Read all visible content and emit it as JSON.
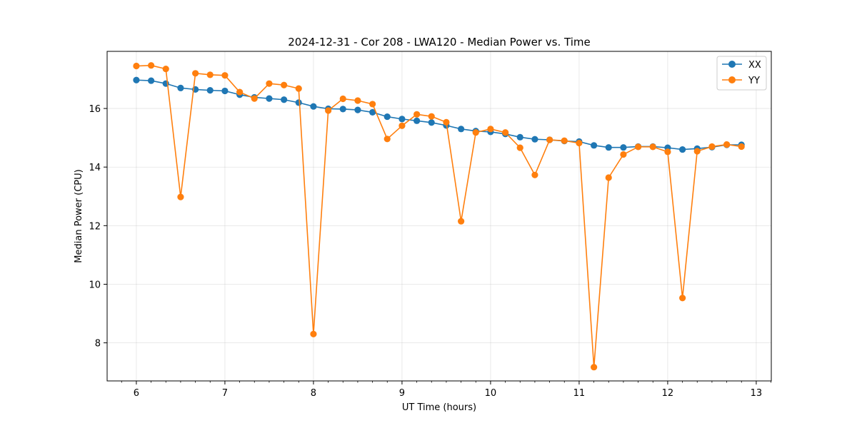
{
  "chart_data": {
    "type": "line",
    "title": "2024-12-31 - Cor 208 - LWA120 - Median Power vs. Time",
    "xlabel": "UT Time (hours)",
    "ylabel": "Median Power (CPU)",
    "xlim": [
      5.67,
      13.17
    ],
    "ylim": [
      6.7,
      17.95
    ],
    "xticks": [
      6,
      7,
      8,
      9,
      10,
      11,
      12,
      13
    ],
    "yticks": [
      8,
      10,
      12,
      14,
      16
    ],
    "grid": true,
    "legend_position": "top-right",
    "x": [
      6.0,
      6.167,
      6.333,
      6.5,
      6.667,
      6.833,
      7.0,
      7.167,
      7.333,
      7.5,
      7.667,
      7.833,
      8.0,
      8.167,
      8.333,
      8.5,
      8.667,
      8.833,
      9.0,
      9.167,
      9.333,
      9.5,
      9.667,
      9.833,
      10.0,
      10.167,
      10.333,
      10.5,
      10.667,
      10.833,
      11.0,
      11.167,
      11.333,
      11.5,
      11.667,
      11.833,
      12.0,
      12.167,
      12.333,
      12.5,
      12.667,
      12.833
    ],
    "series": [
      {
        "name": "XX",
        "color": "#1f77b4",
        "values": [
          16.97,
          16.95,
          16.85,
          16.7,
          16.65,
          16.62,
          16.6,
          16.47,
          16.38,
          16.34,
          16.3,
          16.2,
          16.07,
          15.99,
          15.98,
          15.95,
          15.87,
          15.72,
          15.64,
          15.58,
          15.52,
          15.42,
          15.3,
          15.23,
          15.2,
          15.13,
          15.02,
          14.95,
          14.93,
          14.89,
          14.87,
          14.74,
          14.67,
          14.67,
          14.7,
          14.7,
          14.66,
          14.6,
          14.63,
          14.68,
          14.76,
          14.76
        ]
      },
      {
        "name": "YY",
        "color": "#ff7f0e",
        "values": [
          17.45,
          17.47,
          17.35,
          12.98,
          17.2,
          17.15,
          17.13,
          16.56,
          16.34,
          16.85,
          16.8,
          16.68,
          8.3,
          15.93,
          16.33,
          16.27,
          16.15,
          14.96,
          15.41,
          15.8,
          15.73,
          15.53,
          12.15,
          15.18,
          15.3,
          15.18,
          14.66,
          13.73,
          14.93,
          14.9,
          14.82,
          7.17,
          13.64,
          14.43,
          14.69,
          14.69,
          14.52,
          9.53,
          14.54,
          14.7,
          14.77,
          14.7
        ]
      }
    ]
  }
}
